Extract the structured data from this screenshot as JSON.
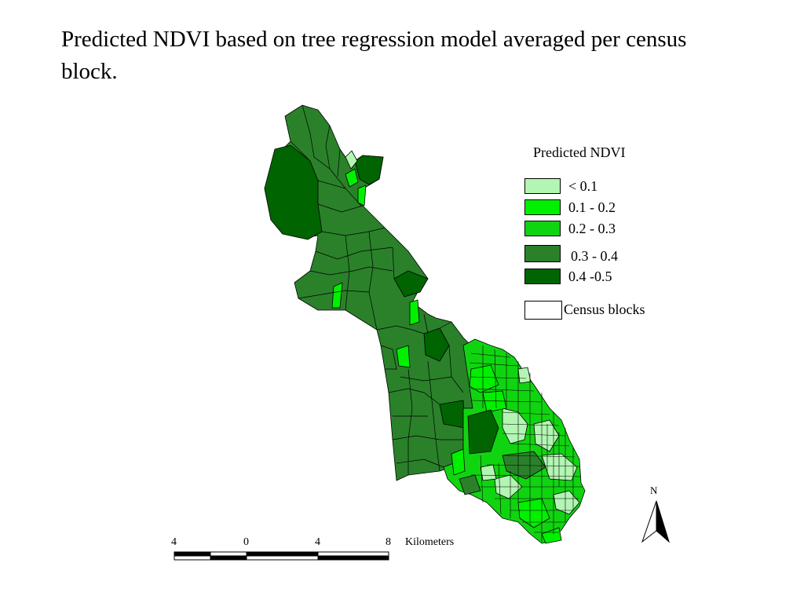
{
  "title": "Predicted NDVI based on tree regression model averaged per census block.",
  "legend": {
    "title": "Predicted NDVI",
    "items": [
      {
        "label": "< 0.1",
        "color": "#b3f5b3"
      },
      {
        "label": "0.1 - 0.2",
        "color": "#00f000"
      },
      {
        "label": "0.2 - 0.3",
        "color": "#11d411"
      },
      {
        "label": "0.3 - 0.4",
        "color": "#2a812a"
      },
      {
        "label": "0.4 -0.5",
        "color": "#006400"
      },
      {
        "label": "Census blocks",
        "color": "#ffffff"
      }
    ]
  },
  "scale_bar": {
    "ticks": [
      "4",
      "0",
      "4",
      "8"
    ],
    "unit": "Kilometers"
  },
  "north_arrow": {
    "label": "N"
  },
  "colors": {
    "fill_lt01": "#b3f5b3",
    "fill_01_02": "#00f000",
    "fill_02_03": "#11d411",
    "fill_03_04": "#2a812a",
    "fill_04_05": "#006400",
    "block_border": "#000000"
  }
}
